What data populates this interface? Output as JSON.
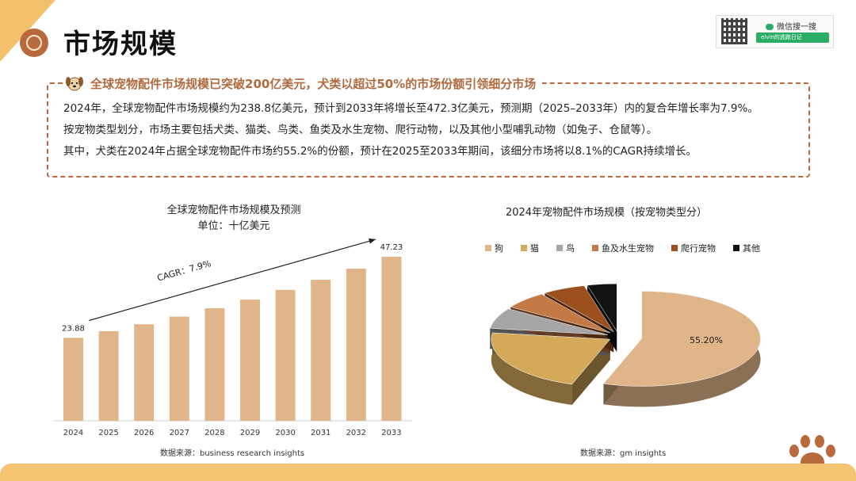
{
  "header": {
    "title": "市场规模",
    "wechat_label": "微信搜一搜",
    "search_text": "elvin的逃跑日记"
  },
  "summary": {
    "headline": "全球宠物配件市场规模已突破200亿美元，犬类以超过50%的市场份额引领细分市场",
    "lines": [
      "2024年，全球宠物配件市场规模约为238.8亿美元，预计到2033年将增长至472.3亿美元，预测期（2025–2033年）内的复合年增长率为7.9%。",
      "按宠物类型划分，市场主要包括犬类、猫类、鸟类、鱼类及水生宠物、爬行动物，以及其他小型哺乳动物（如兔子、仓鼠等）。",
      "其中，犬类在2024年占据全球宠物配件市场约55.2%的份额，预计在2025至2033年期间，该细分市场将以8.1%的CAGR持续增长。"
    ]
  },
  "chart_data": [
    {
      "type": "bar",
      "title": "全球宠物配件市场规模及预测",
      "subtitle": "单位：十亿美元",
      "categories": [
        "2024",
        "2025",
        "2026",
        "2027",
        "2028",
        "2029",
        "2030",
        "2031",
        "2032",
        "2033"
      ],
      "values": [
        23.88,
        25.8,
        27.8,
        30.0,
        32.4,
        34.9,
        37.7,
        40.6,
        43.8,
        47.23
      ],
      "data_labels": {
        "2024": "23.88",
        "2033": "47.23"
      },
      "annotation": "CAGR：7.9%",
      "ylim": [
        0,
        55
      ],
      "color": "#e0b58a",
      "source": "数据来源：business research insights"
    },
    {
      "type": "pie",
      "title": "2024年宠物配件市场规模（按宠物类型分）",
      "labels": [
        "狗",
        "猫",
        "鸟",
        "鱼及水生宠物",
        "爬行宠物",
        "其他"
      ],
      "values": [
        55.2,
        22.0,
        7.0,
        6.0,
        5.8,
        4.0
      ],
      "data_labels": {
        "狗": "55.20%"
      },
      "colors": [
        "#e0b58a",
        "#d4aa5a",
        "#a6a6a6",
        "#c47a45",
        "#9a4f1c",
        "#111111"
      ],
      "legend_position": "top",
      "source": "数据来源：gm insights"
    }
  ]
}
